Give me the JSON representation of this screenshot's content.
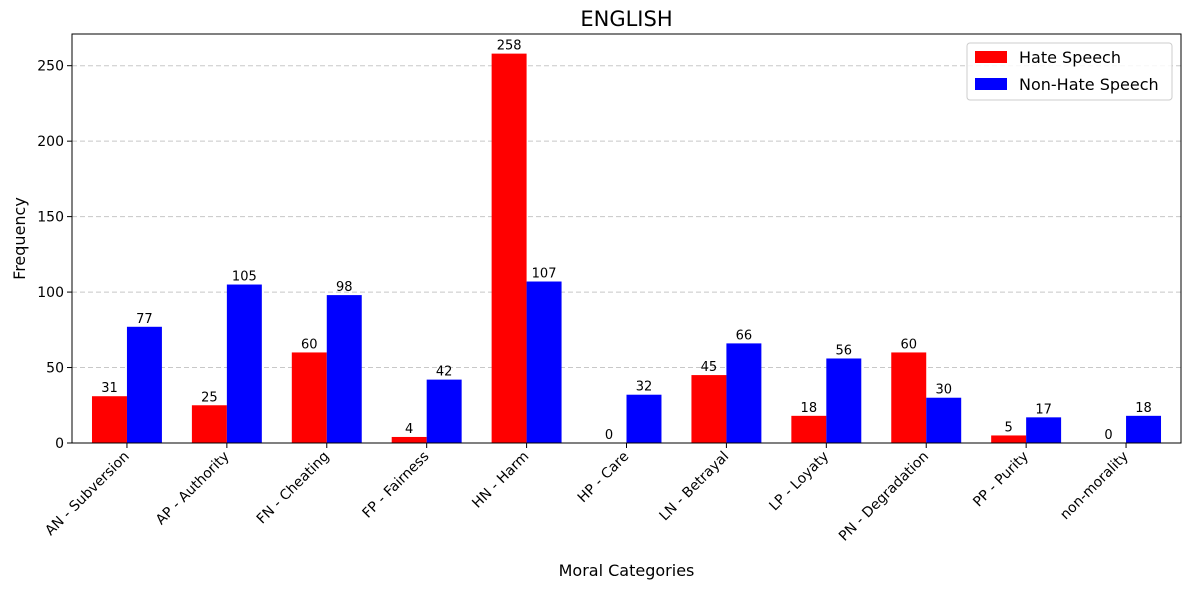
{
  "chart_data": {
    "type": "bar",
    "title": "ENGLISH",
    "xlabel": "Moral Categories",
    "ylabel": "Frequency",
    "ylim": [
      0,
      271
    ],
    "yticks": [
      0,
      50,
      100,
      150,
      200,
      250
    ],
    "grid": "y-dashed",
    "legend_position": "top-right",
    "categories": [
      "AN - Subversion",
      "AP - Authority",
      "FN - Cheating",
      "FP - Fairness",
      "HN - Harm",
      "HP - Care",
      "LN - Betrayal",
      "LP - Loyaty",
      "PN - Degradation",
      "PP - Purity",
      "non-morality"
    ],
    "series": [
      {
        "name": "Hate Speech",
        "color": "#ff0000",
        "values": [
          31,
          25,
          60,
          4,
          258,
          0,
          45,
          18,
          60,
          5,
          0
        ]
      },
      {
        "name": "Non-Hate Speech",
        "color": "#0000ff",
        "values": [
          77,
          105,
          98,
          42,
          107,
          32,
          66,
          56,
          30,
          17,
          18
        ]
      }
    ]
  }
}
